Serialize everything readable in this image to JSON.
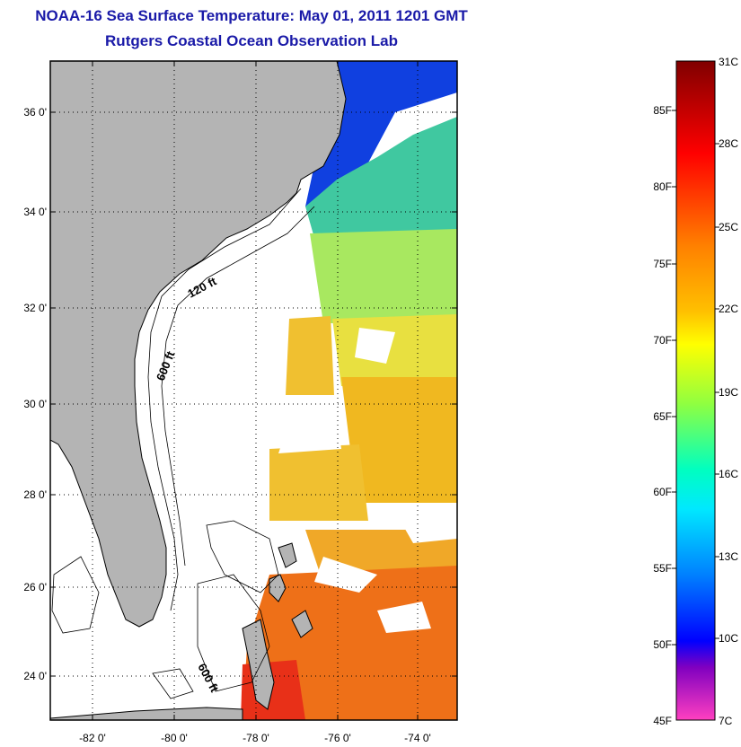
{
  "title": "NOAA-16 Sea Surface Temperature:  May 01, 2011 1201 GMT",
  "subtitle": "Rutgers Coastal Ocean Observation Lab",
  "map": {
    "lat_labels": [
      "36 0'",
      "34 0'",
      "32 0'",
      "30 0'",
      "28 0'",
      "26 0'",
      "24 0'"
    ],
    "lon_labels": [
      "-82 0'",
      "-80 0'",
      "-78 0'",
      "-76 0'",
      "-74 0'"
    ],
    "lat_range": [
      23.0,
      37.0
    ],
    "lon_range": [
      -83.0,
      -73.0
    ],
    "contour_labels": {
      "c120_north": "120 ft",
      "c600_north": "600 ft",
      "c600_south": "600 ft"
    },
    "colors": {
      "land": "#b4b4b4",
      "ocean_nodata": "#ffffff"
    }
  },
  "colorbar": {
    "f_labels": [
      "85F",
      "80F",
      "75F",
      "70F",
      "65F",
      "60F",
      "55F",
      "50F",
      "45F"
    ],
    "c_labels": [
      "31C",
      "28C",
      "25C",
      "22C",
      "19C",
      "16C",
      "13C",
      "10C",
      "7C"
    ],
    "colors": [
      "#800000",
      "#ff0000",
      "#ff7f00",
      "#ffff00",
      "#7fff7f",
      "#00ffff",
      "#007fff",
      "#0000ff",
      "#8000c0",
      "#ff40c0"
    ]
  }
}
